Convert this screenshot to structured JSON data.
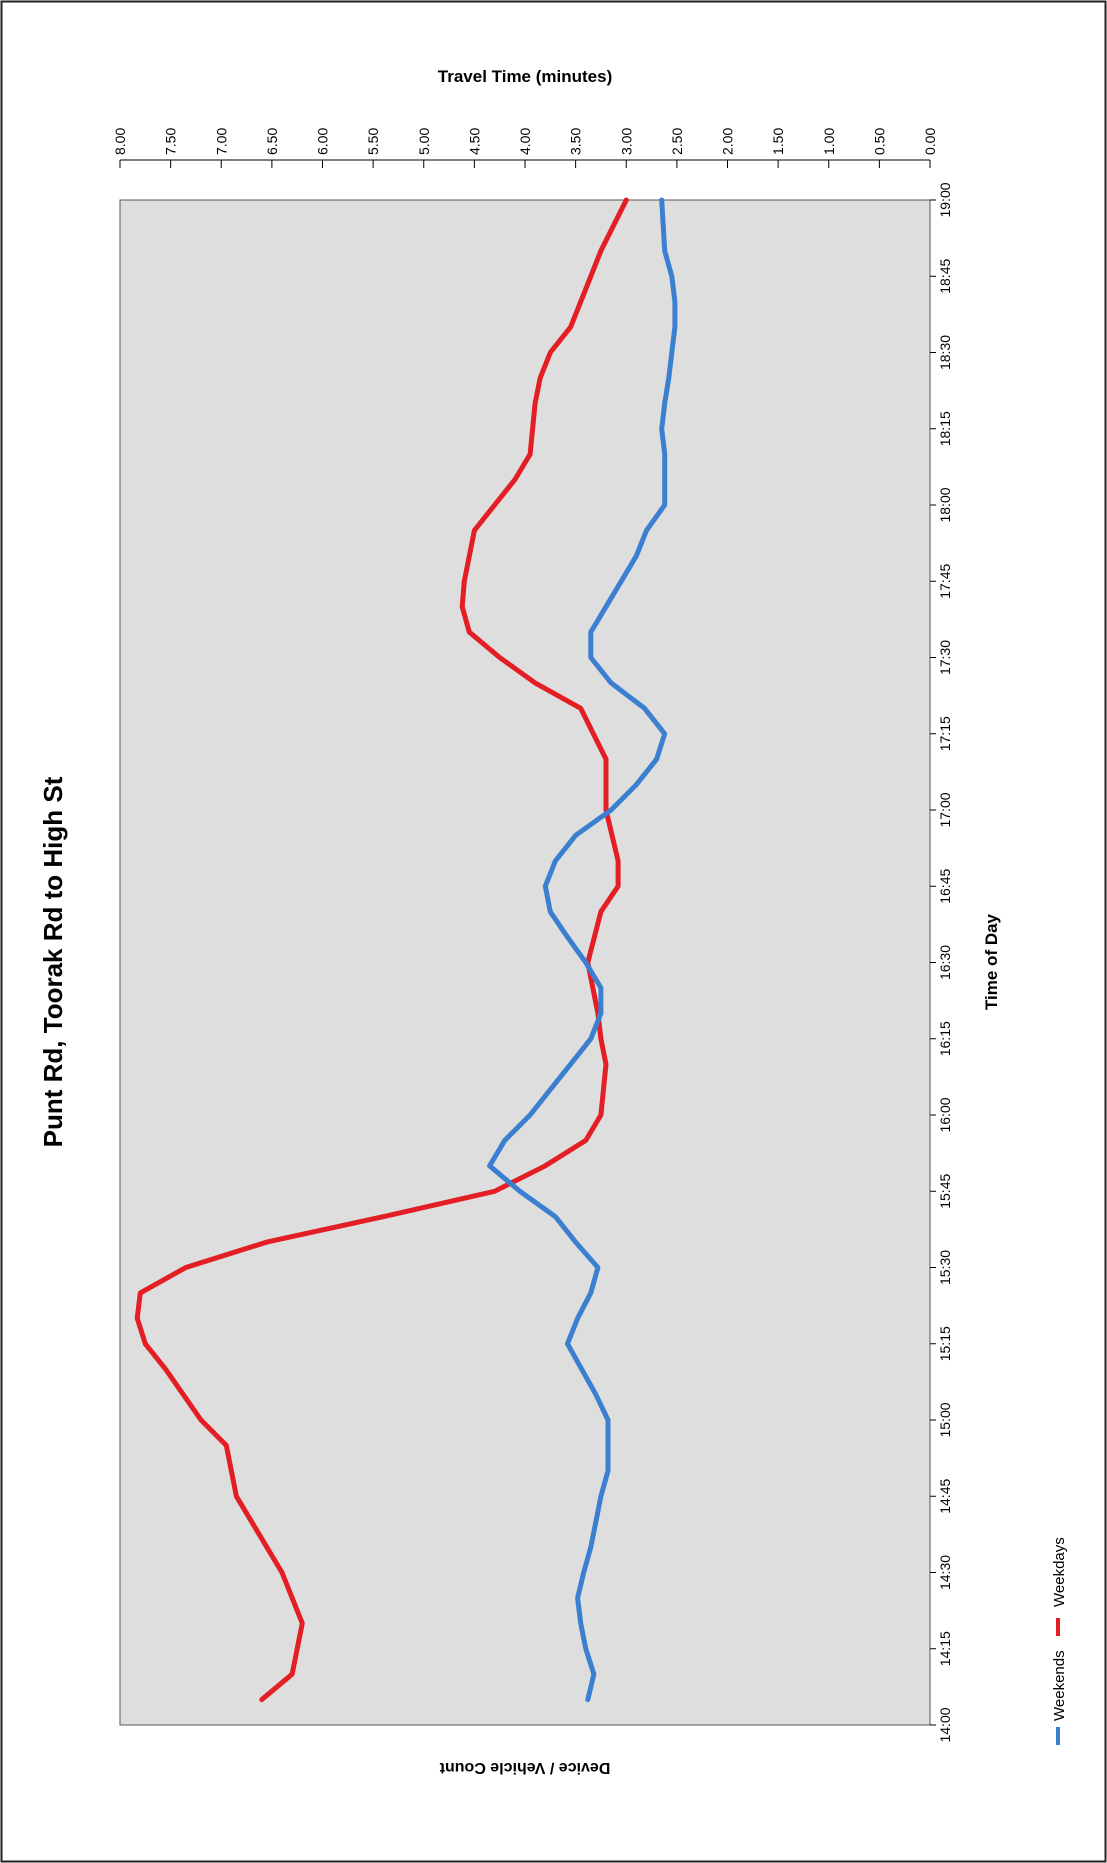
{
  "chart_data": {
    "type": "line",
    "orientation": "rotated-90-cw",
    "title": "Punt Rd, Toorak Rd to High St",
    "xlabel": "Time of Day",
    "ylabel": "Travel Time (minutes)",
    "secondary_label": "Device / Vehicle Count",
    "x_ticks": [
      "14:00",
      "14:15",
      "14:30",
      "14:45",
      "15:00",
      "15:15",
      "15:30",
      "15:45",
      "16:00",
      "16:15",
      "16:30",
      "16:45",
      "17:00",
      "17:15",
      "17:30",
      "17:45",
      "18:00",
      "18:15",
      "18:30",
      "18:45",
      "19:00"
    ],
    "y_ticks": [
      "0.00",
      "0.50",
      "1.00",
      "1.50",
      "2.00",
      "2.50",
      "3.00",
      "3.50",
      "4.00",
      "4.50",
      "5.00",
      "5.50",
      "6.00",
      "6.50",
      "7.00",
      "7.50",
      "8.00"
    ],
    "xlim_minutes": [
      0,
      300
    ],
    "ylim": [
      0,
      8
    ],
    "grid": false,
    "legend_position": "bottom-left",
    "series": [
      {
        "name": "Weekdays",
        "color": "#e31e24",
        "points": [
          [
            "14:05",
            6.6
          ],
          [
            "14:10",
            6.3
          ],
          [
            "14:20",
            6.2
          ],
          [
            "14:30",
            6.4
          ],
          [
            "14:40",
            6.7
          ],
          [
            "14:45",
            6.85
          ],
          [
            "14:55",
            6.95
          ],
          [
            "15:00",
            7.2
          ],
          [
            "15:10",
            7.55
          ],
          [
            "15:15",
            7.75
          ],
          [
            "15:20",
            7.83
          ],
          [
            "15:25",
            7.8
          ],
          [
            "15:30",
            7.35
          ],
          [
            "15:35",
            6.55
          ],
          [
            "15:40",
            5.4
          ],
          [
            "15:45",
            4.3
          ],
          [
            "15:50",
            3.8
          ],
          [
            "15:55",
            3.4
          ],
          [
            "16:00",
            3.25
          ],
          [
            "16:10",
            3.2
          ],
          [
            "16:15",
            3.25
          ],
          [
            "16:20",
            3.28
          ],
          [
            "16:30",
            3.38
          ],
          [
            "16:40",
            3.25
          ],
          [
            "16:45",
            3.08
          ],
          [
            "16:50",
            3.08
          ],
          [
            "17:00",
            3.2
          ],
          [
            "17:05",
            3.2
          ],
          [
            "17:10",
            3.2
          ],
          [
            "17:20",
            3.45
          ],
          [
            "17:25",
            3.9
          ],
          [
            "17:30",
            4.25
          ],
          [
            "17:35",
            4.55
          ],
          [
            "17:40",
            4.62
          ],
          [
            "17:45",
            4.6
          ],
          [
            "17:55",
            4.5
          ],
          [
            "18:00",
            4.3
          ],
          [
            "18:05",
            4.1
          ],
          [
            "18:10",
            3.95
          ],
          [
            "18:20",
            3.9
          ],
          [
            "18:25",
            3.85
          ],
          [
            "18:30",
            3.75
          ],
          [
            "18:35",
            3.55
          ],
          [
            "18:40",
            3.45
          ],
          [
            "18:45",
            3.35
          ],
          [
            "18:50",
            3.25
          ],
          [
            "19:00",
            3.0
          ]
        ]
      },
      {
        "name": "Weekends",
        "color": "#3b7fd1",
        "points": [
          [
            "14:05",
            3.38
          ],
          [
            "14:10",
            3.32
          ],
          [
            "14:15",
            3.4
          ],
          [
            "14:20",
            3.45
          ],
          [
            "14:25",
            3.48
          ],
          [
            "14:30",
            3.42
          ],
          [
            "14:35",
            3.35
          ],
          [
            "14:40",
            3.3
          ],
          [
            "14:45",
            3.25
          ],
          [
            "14:50",
            3.18
          ],
          [
            "15:00",
            3.18
          ],
          [
            "15:05",
            3.3
          ],
          [
            "15:15",
            3.58
          ],
          [
            "15:20",
            3.48
          ],
          [
            "15:25",
            3.35
          ],
          [
            "15:30",
            3.28
          ],
          [
            "15:35",
            3.5
          ],
          [
            "15:40",
            3.7
          ],
          [
            "15:45",
            4.05
          ],
          [
            "15:50",
            4.35
          ],
          [
            "15:55",
            4.2
          ],
          [
            "16:00",
            3.95
          ],
          [
            "16:05",
            3.75
          ],
          [
            "16:10",
            3.55
          ],
          [
            "16:15",
            3.35
          ],
          [
            "16:20",
            3.25
          ],
          [
            "16:25",
            3.25
          ],
          [
            "16:30",
            3.4
          ],
          [
            "16:35",
            3.58
          ],
          [
            "16:40",
            3.75
          ],
          [
            "16:45",
            3.8
          ],
          [
            "16:50",
            3.7
          ],
          [
            "16:55",
            3.5
          ],
          [
            "17:00",
            3.15
          ],
          [
            "17:05",
            2.9
          ],
          [
            "17:10",
            2.7
          ],
          [
            "17:15",
            2.62
          ],
          [
            "17:20",
            2.82
          ],
          [
            "17:25",
            3.15
          ],
          [
            "17:30",
            3.35
          ],
          [
            "17:35",
            3.35
          ],
          [
            "17:40",
            3.2
          ],
          [
            "17:45",
            3.05
          ],
          [
            "17:50",
            2.9
          ],
          [
            "17:55",
            2.8
          ],
          [
            "18:00",
            2.62
          ],
          [
            "18:05",
            2.62
          ],
          [
            "18:10",
            2.62
          ],
          [
            "18:15",
            2.65
          ],
          [
            "18:20",
            2.62
          ],
          [
            "18:25",
            2.58
          ],
          [
            "18:30",
            2.55
          ],
          [
            "18:35",
            2.52
          ],
          [
            "18:40",
            2.52
          ],
          [
            "18:45",
            2.55
          ],
          [
            "18:50",
            2.62
          ],
          [
            "19:00",
            2.65
          ]
        ]
      }
    ]
  }
}
